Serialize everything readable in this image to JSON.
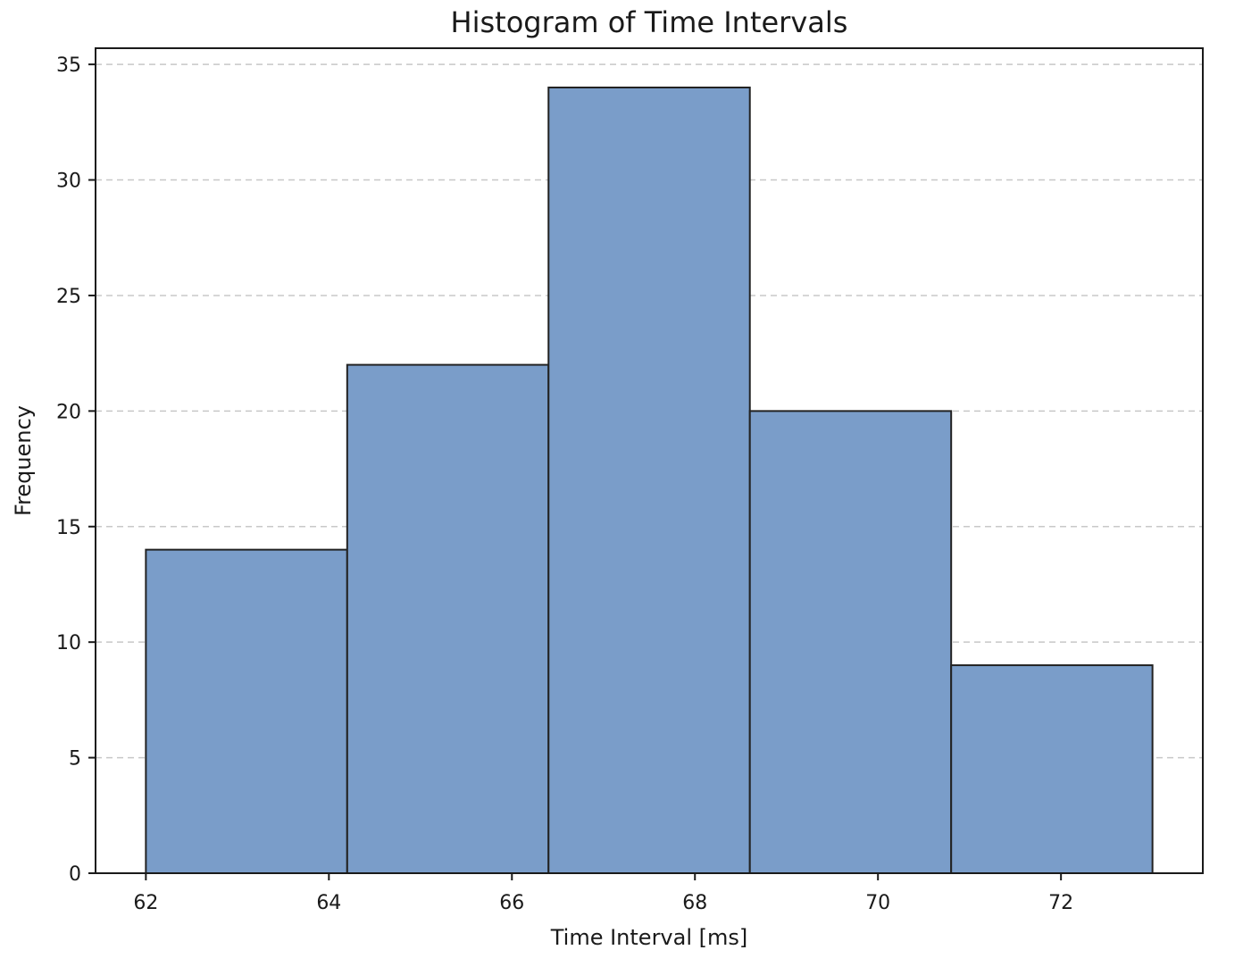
{
  "chart_data": {
    "type": "bar",
    "title": "Histogram of Time Intervals",
    "xlabel": "Time Interval [ms]",
    "ylabel": "Frequency",
    "bins": [
      {
        "start": 62.0,
        "end": 64.2,
        "count": 14
      },
      {
        "start": 64.2,
        "end": 66.4,
        "count": 22
      },
      {
        "start": 66.4,
        "end": 68.6,
        "count": 34
      },
      {
        "start": 68.6,
        "end": 70.8,
        "count": 20
      },
      {
        "start": 70.8,
        "end": 73.0,
        "count": 9
      }
    ],
    "xlim": [
      61.45,
      73.55
    ],
    "ylim": [
      0,
      35.7
    ],
    "xticks": [
      62,
      64,
      66,
      68,
      70,
      72
    ],
    "yticks": [
      0,
      5,
      10,
      15,
      20,
      25,
      30,
      35
    ],
    "grid": "y-dashed",
    "bar_color": "#7a9dc9",
    "bar_edge_color": "#222222"
  }
}
